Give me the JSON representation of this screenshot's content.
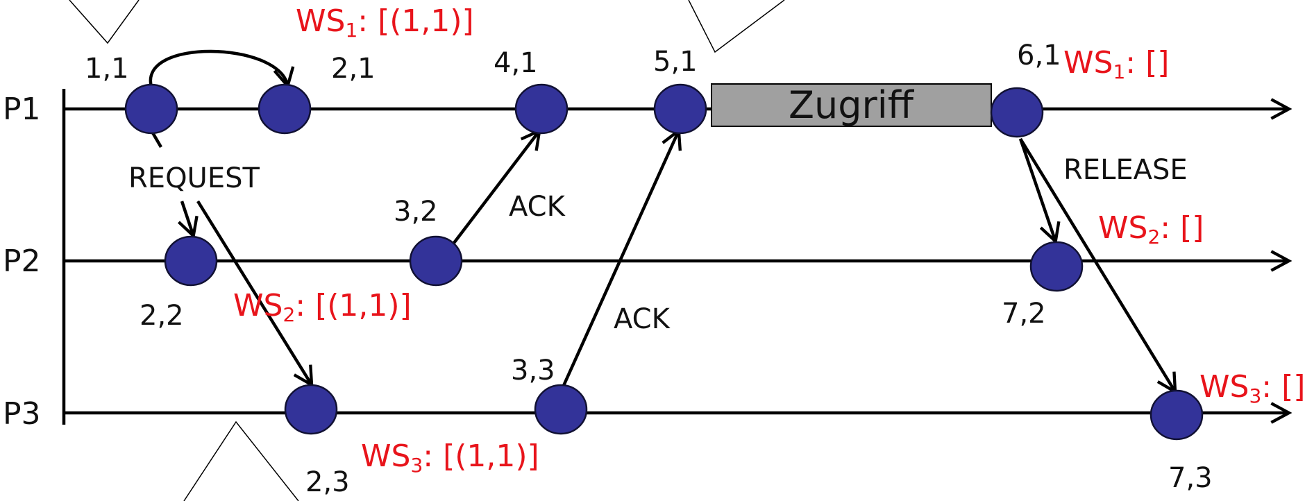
{
  "processes": [
    {
      "id": "P1",
      "label": "P1"
    },
    {
      "id": "P2",
      "label": "P2"
    },
    {
      "id": "P3",
      "label": "P3"
    }
  ],
  "events": [
    {
      "id": "e11",
      "process": "P1",
      "label": "1,1"
    },
    {
      "id": "e21",
      "process": "P1",
      "label": "2,1"
    },
    {
      "id": "e41",
      "process": "P1",
      "label": "4,1"
    },
    {
      "id": "e51",
      "process": "P1",
      "label": "5,1"
    },
    {
      "id": "e61",
      "process": "P1",
      "label": "6,1"
    },
    {
      "id": "e22",
      "process": "P2",
      "label": "2,2"
    },
    {
      "id": "e32",
      "process": "P2",
      "label": "3,2"
    },
    {
      "id": "e72",
      "process": "P2",
      "label": "7,2"
    },
    {
      "id": "e23",
      "process": "P3",
      "label": "2,3"
    },
    {
      "id": "e33",
      "process": "P3",
      "label": "3,3"
    },
    {
      "id": "e73",
      "process": "P3",
      "label": "7,3"
    }
  ],
  "messages": {
    "request": "REQUEST",
    "ack_p2": "ACK",
    "ack_p3": "ACK",
    "release": "RELEASE"
  },
  "critical_section": "Zugriff",
  "queues": [
    {
      "id": "ws1_req",
      "base": "WS",
      "sub": "1",
      "value": ": [(1,1)]"
    },
    {
      "id": "ws1_rel",
      "base": "WS",
      "sub": "1",
      "value": ": []"
    },
    {
      "id": "ws2_req",
      "base": "WS",
      "sub": "2",
      "value": ": [(1,1)]"
    },
    {
      "id": "ws2_rel",
      "base": "WS",
      "sub": "2",
      "value": ": []"
    },
    {
      "id": "ws3_req",
      "base": "WS",
      "sub": "3",
      "value": ": [(1,1)]"
    },
    {
      "id": "ws3_rel",
      "base": "WS",
      "sub": "3",
      "value": ": []"
    }
  ],
  "colors": {
    "node": "#333399",
    "queue_text": "#e8141b",
    "critical_box": "#a0a0a0"
  }
}
